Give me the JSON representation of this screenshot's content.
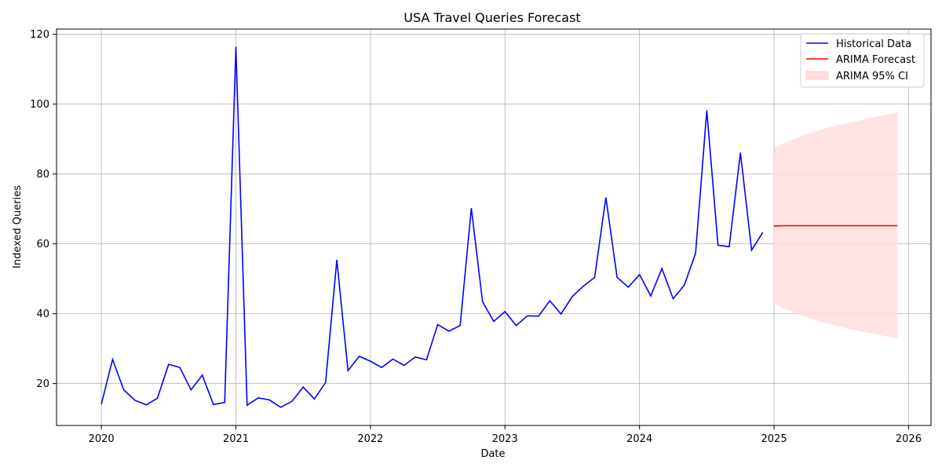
{
  "chart_data": {
    "type": "line",
    "title": "USA Travel Queries Forecast",
    "xlabel": "Date",
    "ylabel": "Indexed Queries",
    "xlim": [
      "2019-09-01",
      "2026-03-01"
    ],
    "ylim": [
      8,
      121.5
    ],
    "x_ticks": [
      "2020",
      "2021",
      "2022",
      "2023",
      "2024",
      "2025",
      "2026"
    ],
    "y_ticks": [
      20,
      40,
      60,
      80,
      100,
      120
    ],
    "grid": true,
    "legend_position": "top-right",
    "series": [
      {
        "name": "Historical Data",
        "color": "#0000ff",
        "x": [
          "2020-01",
          "2020-02",
          "2020-03",
          "2020-04",
          "2020-05",
          "2020-06",
          "2020-07",
          "2020-08",
          "2020-09",
          "2020-10",
          "2020-11",
          "2020-12",
          "2021-01",
          "2021-02",
          "2021-03",
          "2021-04",
          "2021-05",
          "2021-06",
          "2021-07",
          "2021-08",
          "2021-09",
          "2021-10",
          "2021-11",
          "2021-12",
          "2022-01",
          "2022-02",
          "2022-03",
          "2022-04",
          "2022-05",
          "2022-06",
          "2022-07",
          "2022-08",
          "2022-09",
          "2022-10",
          "2022-11",
          "2022-12",
          "2023-01",
          "2023-02",
          "2023-03",
          "2023-04",
          "2023-05",
          "2023-06",
          "2023-07",
          "2023-08",
          "2023-09",
          "2023-10",
          "2023-11",
          "2023-12",
          "2024-01",
          "2024-02",
          "2024-03",
          "2024-04",
          "2024-05",
          "2024-06",
          "2024-07",
          "2024-08",
          "2024-09",
          "2024-10",
          "2024-11",
          "2024-12"
        ],
        "y": [
          14.1,
          26.9,
          18.2,
          15.2,
          13.9,
          15.8,
          25.5,
          24.6,
          18.2,
          22.4,
          14.0,
          14.6,
          116.4,
          13.8,
          15.9,
          15.3,
          13.2,
          14.9,
          19.0,
          15.6,
          20.3,
          55.4,
          23.7,
          27.8,
          26.4,
          24.6,
          27.0,
          25.2,
          27.6,
          26.8,
          36.9,
          35.0,
          36.6,
          70.2,
          43.4,
          37.8,
          40.6,
          36.6,
          39.4,
          39.3,
          43.7,
          39.9,
          44.9,
          47.9,
          50.4,
          73.3,
          50.4,
          47.6,
          51.2,
          45.1,
          52.9,
          44.3,
          48.2,
          57.3,
          98.2,
          59.6,
          59.2,
          86.1,
          58.2,
          63.3
        ]
      },
      {
        "name": "ARIMA Forecast",
        "color": "#ff0000",
        "x": [
          "2025-01",
          "2025-02",
          "2025-03",
          "2025-04",
          "2025-05",
          "2025-06",
          "2025-07",
          "2025-08",
          "2025-09",
          "2025-10",
          "2025-11",
          "2025-12"
        ],
        "y": [
          65.1,
          65.2,
          65.2,
          65.2,
          65.2,
          65.2,
          65.2,
          65.2,
          65.2,
          65.2,
          65.2,
          65.2
        ]
      }
    ],
    "confidence_band": {
      "name": "ARIMA 95% CI",
      "color": "#ffdddd",
      "x": [
        "2025-01",
        "2025-02",
        "2025-03",
        "2025-04",
        "2025-05",
        "2025-06",
        "2025-07",
        "2025-08",
        "2025-09",
        "2025-10",
        "2025-11",
        "2025-12"
      ],
      "lower": [
        43.0,
        41.3,
        40.0,
        38.9,
        37.9,
        37.0,
        36.2,
        35.5,
        34.8,
        34.2,
        33.5,
        32.8
      ],
      "upper": [
        87.3,
        89.0,
        90.3,
        91.5,
        92.5,
        93.4,
        94.2,
        94.9,
        95.6,
        96.3,
        97.0,
        97.6
      ]
    }
  }
}
